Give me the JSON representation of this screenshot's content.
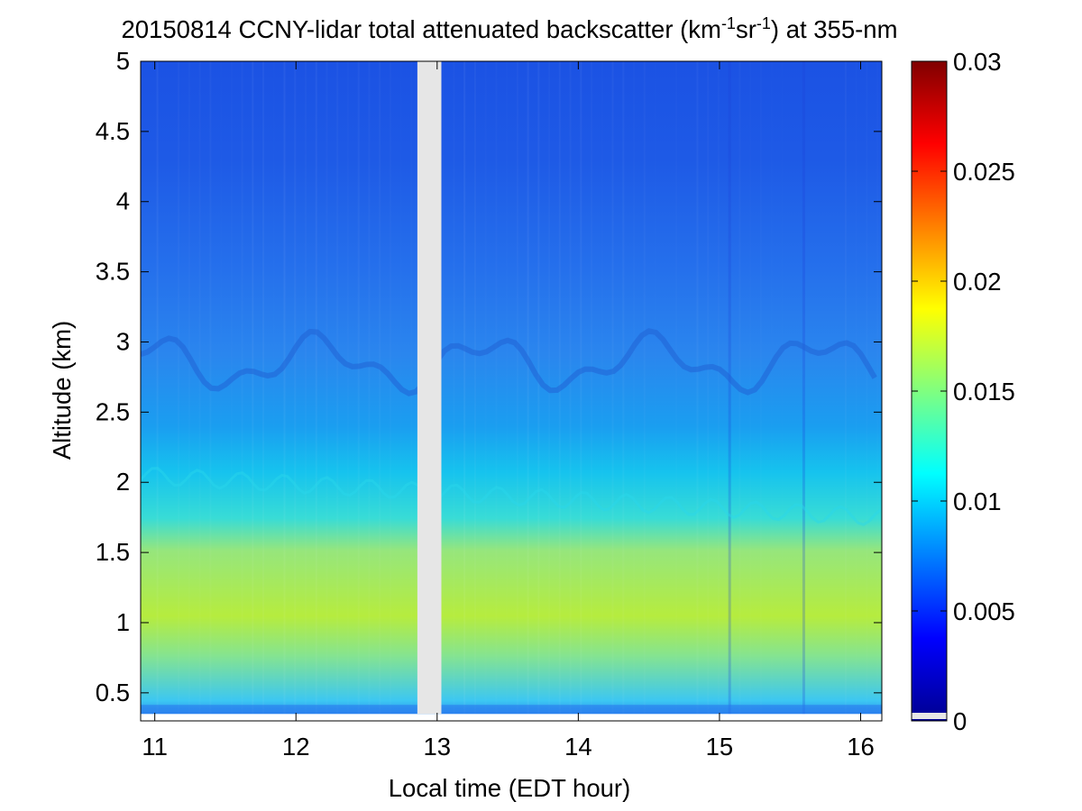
{
  "chart_data": {
    "type": "heatmap",
    "title": {
      "pre": "20150814 CCNY-lidar total attenuated backscatter (km",
      "exp1": "-1",
      "mid": "sr",
      "exp2": "-1",
      "post": ") at 355-nm"
    },
    "xlabel": "Local time (EDT hour)",
    "ylabel": "Altitude (km)",
    "xlim": [
      10.9,
      16.15
    ],
    "ylim": [
      0.3,
      5
    ],
    "x_ticks": [
      11,
      12,
      13,
      14,
      15,
      16
    ],
    "y_ticks": [
      0.5,
      1,
      1.5,
      2,
      2.5,
      3,
      3.5,
      4,
      4.5,
      5
    ],
    "y_tick_labels": [
      "0.5",
      "1",
      "1.5",
      "2",
      "2.5",
      "3",
      "3.5",
      "4",
      "4.5",
      "5"
    ],
    "data_bottom_km": 0.35,
    "missing_data_x": [
      12.86,
      13.03
    ],
    "layers": {
      "residual_layer_top_km": 3.5,
      "boundary_layer_top_km_start": 2.05,
      "boundary_layer_top_km_end": 1.75
    },
    "colorbar": {
      "min": 0,
      "max": 0.03,
      "ticks": [
        0,
        0.005,
        0.01,
        0.015,
        0.02,
        0.025,
        0.03
      ],
      "tick_labels": [
        "0",
        "0.005",
        "0.01",
        "0.015",
        "0.02",
        "0.025",
        "0.03"
      ],
      "colormap": "jet",
      "stops": [
        "#00008f",
        "#0000ff",
        "#00ffff",
        "#ffff00",
        "#ff0000",
        "#800000"
      ]
    },
    "colors": {
      "free_troposphere": "#1e5ae6",
      "residual_layer": "#2a86ee",
      "boundary_layer_top": "#19d2ec",
      "boundary_layer_core": "#b6ec3e",
      "missing_data": "#e6e6e6"
    }
  }
}
